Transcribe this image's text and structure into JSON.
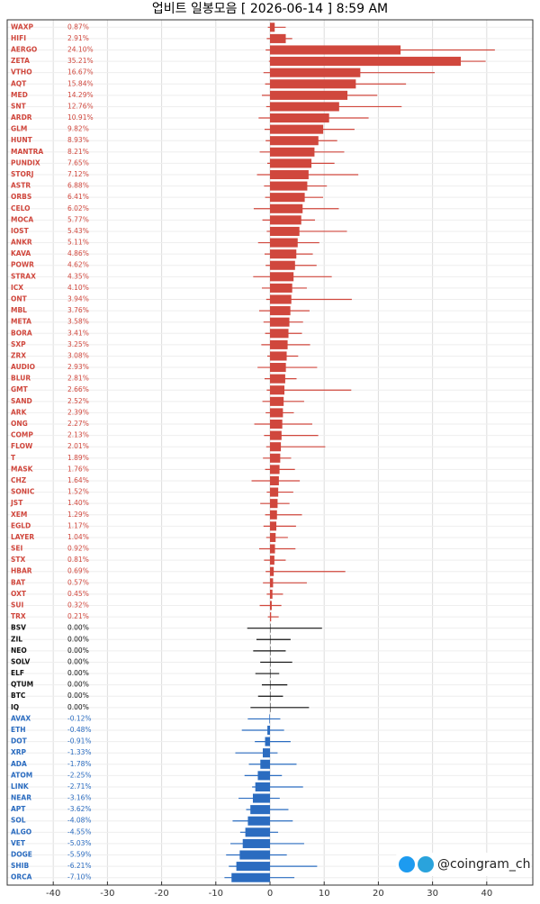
{
  "chart_data": {
    "type": "candle-bar",
    "title": "업비트 일봉모음 [ 2026-06-14 ]  8:59 AM",
    "categories": [
      "WAXP",
      "HIFI",
      "AERGO",
      "ZETA",
      "VTHO",
      "AQT",
      "MED",
      "SNT",
      "ARDR",
      "GLM",
      "HUNT",
      "MANTRA",
      "PUNDIX",
      "STORJ",
      "ASTR",
      "ORBS",
      "CELO",
      "MOCA",
      "IOST",
      "ANKR",
      "KAVA",
      "POWR",
      "STRAX",
      "ICX",
      "ONT",
      "MBL",
      "META",
      "BORA",
      "SXP",
      "ZRX",
      "AUDIO",
      "BLUR",
      "GMT",
      "SAND",
      "ARK",
      "ONG",
      "COMP",
      "FLOW",
      "T",
      "MASK",
      "CHZ",
      "SONIC",
      "JST",
      "XEM",
      "EGLD",
      "LAYER",
      "SEI",
      "STX",
      "HBAR",
      "BAT",
      "OXT",
      "SUI",
      "TRX",
      "BSV",
      "ZIL",
      "NEO",
      "SOLV",
      "ELF",
      "QTUM",
      "BTC",
      "IQ",
      "AVAX",
      "ETH",
      "DOT",
      "XRP",
      "ADA",
      "ATOM",
      "LINK",
      "NEAR",
      "APT",
      "SOL",
      "ALGO",
      "VET",
      "DOGE",
      "SHIB",
      "ORCA"
    ],
    "values": [
      0.87,
      2.91,
      24.1,
      35.21,
      16.67,
      15.84,
      14.29,
      12.76,
      10.91,
      9.82,
      8.93,
      8.21,
      7.65,
      7.12,
      6.88,
      6.41,
      6.02,
      5.77,
      5.43,
      5.11,
      4.86,
      4.62,
      4.35,
      4.1,
      3.94,
      3.76,
      3.58,
      3.41,
      3.25,
      3.08,
      2.93,
      2.81,
      2.66,
      2.52,
      2.39,
      2.27,
      2.13,
      2.01,
      1.89,
      1.76,
      1.64,
      1.52,
      1.4,
      1.29,
      1.17,
      1.04,
      0.92,
      0.81,
      0.69,
      0.57,
      0.45,
      0.32,
      0.21,
      0,
      0,
      0,
      0,
      0,
      0,
      0,
      0,
      -0.12,
      -0.48,
      -0.91,
      -1.33,
      -1.78,
      -2.25,
      -2.71,
      -3.16,
      -3.62,
      -4.08,
      -4.55,
      -5.03,
      -5.59,
      -6.21,
      -7.1
    ],
    "value_labels": [
      "0.87%",
      "2.91%",
      "24.10%",
      "35.21%",
      "16.67%",
      "15.84%",
      "14.29%",
      "12.76%",
      "10.91%",
      "9.82%",
      "8.93%",
      "8.21%",
      "7.65%",
      "7.12%",
      "6.88%",
      "6.41%",
      "6.02%",
      "5.77%",
      "5.43%",
      "5.11%",
      "4.86%",
      "4.62%",
      "4.35%",
      "4.10%",
      "3.94%",
      "3.76%",
      "3.58%",
      "3.41%",
      "3.25%",
      "3.08%",
      "2.93%",
      "2.81%",
      "2.66%",
      "2.52%",
      "2.39%",
      "2.27%",
      "2.13%",
      "2.01%",
      "1.89%",
      "1.76%",
      "1.64%",
      "1.52%",
      "1.40%",
      "1.29%",
      "1.17%",
      "1.04%",
      "0.92%",
      "0.81%",
      "0.69%",
      "0.57%",
      "0.45%",
      "0.32%",
      "0.21%",
      "0.00%",
      "0.00%",
      "0.00%",
      "0.00%",
      "0.00%",
      "0.00%",
      "0.00%",
      "0.00%",
      "-0.12%",
      "-0.48%",
      "-0.91%",
      "-1.33%",
      "-1.78%",
      "-2.25%",
      "-2.71%",
      "-3.16%",
      "-3.62%",
      "-4.08%",
      "-4.55%",
      "-5.03%",
      "-5.59%",
      "-6.21%",
      "-7.10%"
    ],
    "lows": [
      -0.4,
      -0.6,
      -0.8,
      -0.2,
      -1.2,
      -0.9,
      -1.5,
      -0.7,
      -2.1,
      -1.0,
      -0.8,
      -1.9,
      -0.5,
      -2.4,
      -1.1,
      -0.9,
      -3.0,
      -1.4,
      -0.6,
      -2.2,
      -1.0,
      -0.8,
      -3.1,
      -1.5,
      -0.7,
      -2.0,
      -1.2,
      -0.9,
      -1.6,
      -0.5,
      -2.3,
      -1.0,
      -0.6,
      -1.4,
      -0.8,
      -2.9,
      -1.1,
      -0.7,
      -1.3,
      -0.9,
      -3.4,
      -0.6,
      -1.8,
      -0.9,
      -1.2,
      -0.7,
      -2.0,
      -1.1,
      -0.8,
      -1.3,
      -0.6,
      -1.9,
      -0.4,
      -4.2,
      -2.5,
      -3.1,
      -1.8,
      -2.7,
      -1.5,
      -2.2,
      -3.6,
      -4.1,
      -5.2,
      -2.8,
      -6.4,
      -3.9,
      -4.7,
      -3.3,
      -5.8,
      -4.4,
      -6.9,
      -5.5,
      -7.3,
      -8.1,
      -7.6,
      -8.4
    ],
    "highs": [
      2.9,
      4.1,
      41.5,
      39.8,
      30.4,
      25.1,
      19.8,
      24.3,
      18.2,
      15.6,
      12.4,
      13.7,
      11.9,
      16.3,
      10.5,
      9.8,
      12.7,
      8.3,
      14.2,
      9.1,
      7.9,
      8.6,
      11.4,
      6.8,
      15.1,
      7.3,
      6.1,
      5.9,
      7.4,
      5.2,
      8.7,
      4.9,
      15.0,
      6.3,
      4.4,
      7.8,
      8.9,
      10.2,
      3.9,
      4.6,
      5.5,
      4.3,
      3.6,
      5.9,
      4.8,
      3.3,
      4.7,
      2.9,
      13.9,
      6.8,
      2.4,
      2.1,
      1.6,
      9.6,
      3.8,
      2.9,
      4.1,
      1.7,
      3.2,
      2.4,
      7.2,
      1.9,
      2.6,
      3.8,
      1.4,
      4.9,
      2.2,
      6.1,
      1.8,
      3.4,
      4.2,
      1.5,
      6.3,
      3.1,
      8.7,
      4.5
    ],
    "positive_color": "#d0473d",
    "zero_color": "#111111",
    "negative_color": "#2b6cc0",
    "xlim": [
      -48.5,
      48.5
    ],
    "xticks": [
      -40,
      -30,
      -20,
      -10,
      0,
      10,
      20,
      30,
      40
    ],
    "grid": true
  },
  "watermark": "@coingram_ch"
}
